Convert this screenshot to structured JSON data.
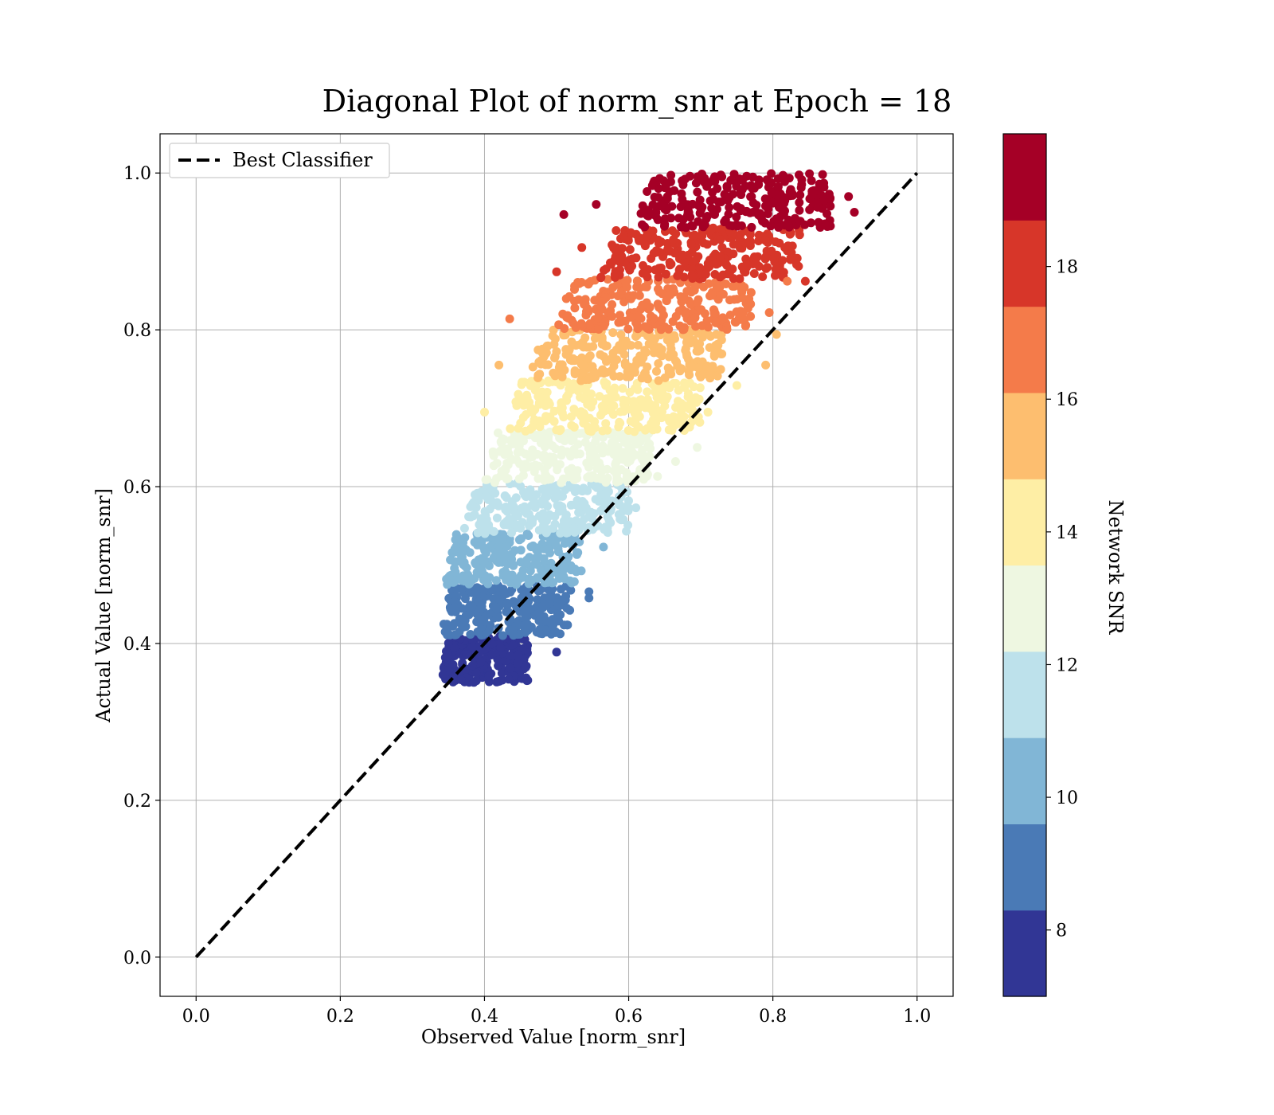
{
  "chart_data": {
    "type": "scatter",
    "title": "Diagonal Plot of norm_snr at Epoch = 18",
    "xlabel": "Observed Value [norm_snr]",
    "ylabel": "Actual Value [norm_snr]",
    "xlim": [
      -0.05,
      1.05
    ],
    "ylim": [
      -0.05,
      1.05
    ],
    "xticks": [
      "0.0",
      "0.2",
      "0.4",
      "0.6",
      "0.8",
      "1.0"
    ],
    "yticks": [
      "0.0",
      "0.2",
      "0.4",
      "0.6",
      "0.8",
      "1.0"
    ],
    "grid": true,
    "legend": {
      "position": "top-left",
      "entries": [
        "Best Classifier"
      ]
    },
    "reference_line": {
      "name": "Best Classifier",
      "style": "dashed",
      "color": "#000000",
      "x": [
        0.0,
        1.0
      ],
      "y": [
        0.0,
        1.0
      ]
    },
    "colorbar": {
      "label": "Network SNR",
      "range": [
        7,
        20
      ],
      "ticks": [
        "8",
        "10",
        "12",
        "14",
        "16",
        "18"
      ],
      "bands": [
        {
          "snr": [
            7,
            8.3
          ],
          "color": "#313695"
        },
        {
          "snr": [
            8.3,
            9.6
          ],
          "color": "#4a7ab6"
        },
        {
          "snr": [
            9.6,
            10.9
          ],
          "color": "#81b6d6"
        },
        {
          "snr": [
            10.9,
            12.2
          ],
          "color": "#bde1eb"
        },
        {
          "snr": [
            12.2,
            13.5
          ],
          "color": "#eef7e1"
        },
        {
          "snr": [
            13.5,
            14.8
          ],
          "color": "#feeea5"
        },
        {
          "snr": [
            14.8,
            16.1
          ],
          "color": "#fdbe6f"
        },
        {
          "snr": [
            16.1,
            17.4
          ],
          "color": "#f47b4a"
        },
        {
          "snr": [
            17.4,
            18.7
          ],
          "color": "#d73629"
        },
        {
          "snr": [
            18.7,
            20
          ],
          "color": "#a50026"
        }
      ]
    },
    "point_bands": [
      {
        "color": "#313695",
        "actual_range": [
          0.35,
          0.41
        ],
        "observed_range": [
          0.34,
          0.46
        ]
      },
      {
        "color": "#4a7ab6",
        "actual_range": [
          0.41,
          0.475
        ],
        "observed_range": [
          0.34,
          0.52
        ]
      },
      {
        "color": "#81b6d6",
        "actual_range": [
          0.475,
          0.54
        ],
        "observed_range": [
          0.345,
          0.535
        ]
      },
      {
        "color": "#bde1eb",
        "actual_range": [
          0.54,
          0.605
        ],
        "observed_range": [
          0.37,
          0.6
        ]
      },
      {
        "color": "#eef7e1",
        "actual_range": [
          0.605,
          0.67
        ],
        "observed_range": [
          0.4,
          0.63
        ]
      },
      {
        "color": "#feeea5",
        "actual_range": [
          0.67,
          0.735
        ],
        "observed_range": [
          0.43,
          0.7
        ]
      },
      {
        "color": "#fdbe6f",
        "actual_range": [
          0.735,
          0.8
        ],
        "observed_range": [
          0.46,
          0.73
        ]
      },
      {
        "color": "#f47b4a",
        "actual_range": [
          0.8,
          0.865
        ],
        "observed_range": [
          0.5,
          0.77
        ]
      },
      {
        "color": "#d73629",
        "actual_range": [
          0.865,
          0.93
        ],
        "observed_range": [
          0.56,
          0.84
        ]
      },
      {
        "color": "#a50026",
        "actual_range": [
          0.93,
          1.0
        ],
        "observed_range": [
          0.61,
          0.88
        ]
      }
    ],
    "outliers": [
      {
        "x": 0.51,
        "y": 0.947,
        "color": "#a50026"
      },
      {
        "x": 0.555,
        "y": 0.96,
        "color": "#a50026"
      },
      {
        "x": 0.905,
        "y": 0.97,
        "color": "#a50026"
      },
      {
        "x": 0.913,
        "y": 0.95,
        "color": "#a50026"
      },
      {
        "x": 0.875,
        "y": 0.948,
        "color": "#a50026"
      },
      {
        "x": 0.865,
        "y": 0.936,
        "color": "#a50026"
      },
      {
        "x": 0.535,
        "y": 0.905,
        "color": "#d73629"
      },
      {
        "x": 0.845,
        "y": 0.862,
        "color": "#d73629"
      },
      {
        "x": 0.5,
        "y": 0.874,
        "color": "#d73629"
      },
      {
        "x": 0.435,
        "y": 0.814,
        "color": "#f47b4a"
      },
      {
        "x": 0.795,
        "y": 0.822,
        "color": "#f47b4a"
      },
      {
        "x": 0.82,
        "y": 0.862,
        "color": "#f47b4a"
      },
      {
        "x": 0.805,
        "y": 0.794,
        "color": "#fdbe6f"
      },
      {
        "x": 0.79,
        "y": 0.755,
        "color": "#fdbe6f"
      },
      {
        "x": 0.42,
        "y": 0.755,
        "color": "#fdbe6f"
      },
      {
        "x": 0.75,
        "y": 0.729,
        "color": "#feeea5"
      },
      {
        "x": 0.71,
        "y": 0.695,
        "color": "#feeea5"
      },
      {
        "x": 0.4,
        "y": 0.695,
        "color": "#feeea5"
      },
      {
        "x": 0.665,
        "y": 0.632,
        "color": "#eef7e1"
      },
      {
        "x": 0.695,
        "y": 0.65,
        "color": "#eef7e1"
      },
      {
        "x": 0.64,
        "y": 0.613,
        "color": "#eef7e1"
      },
      {
        "x": 0.61,
        "y": 0.573,
        "color": "#bde1eb"
      },
      {
        "x": 0.6,
        "y": 0.582,
        "color": "#bde1eb"
      },
      {
        "x": 0.565,
        "y": 0.523,
        "color": "#81b6d6"
      },
      {
        "x": 0.545,
        "y": 0.458,
        "color": "#4a7ab6"
      },
      {
        "x": 0.545,
        "y": 0.466,
        "color": "#4a7ab6"
      },
      {
        "x": 0.49,
        "y": 0.428,
        "color": "#4a7ab6"
      },
      {
        "x": 0.5,
        "y": 0.389,
        "color": "#313695"
      },
      {
        "x": 0.46,
        "y": 0.353,
        "color": "#313695"
      }
    ]
  }
}
